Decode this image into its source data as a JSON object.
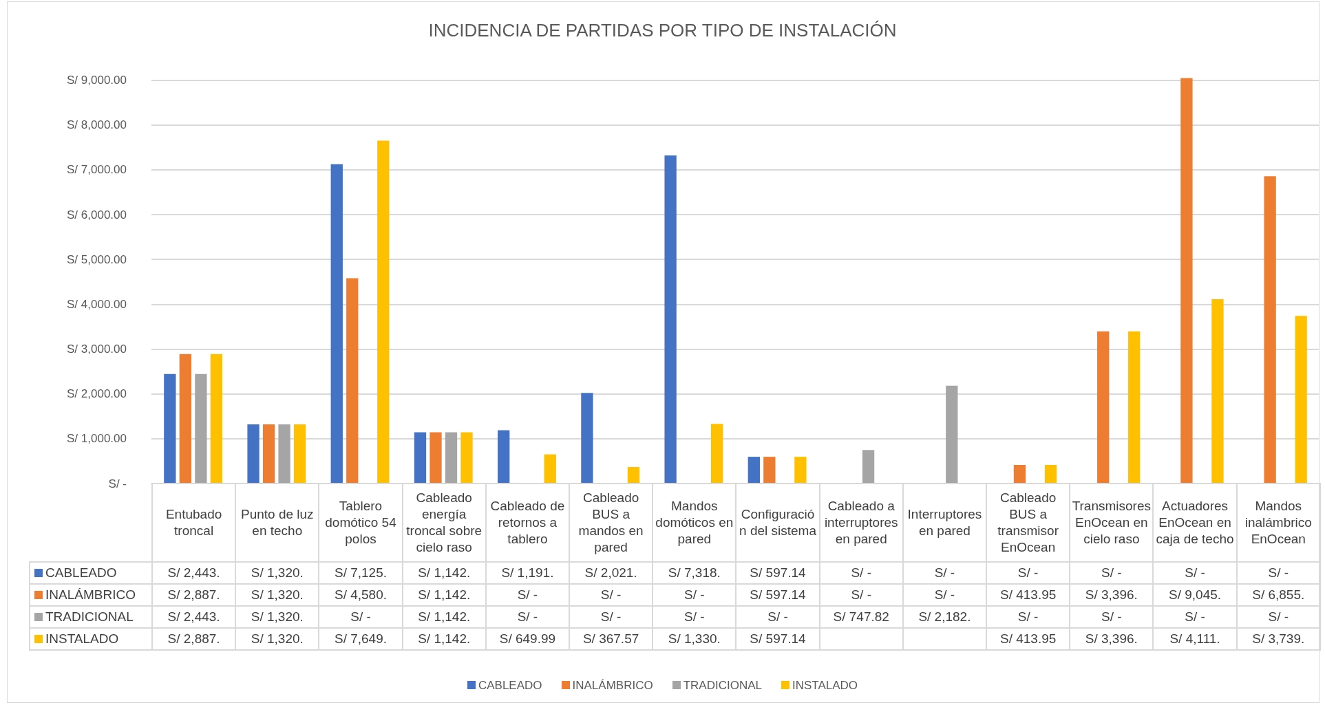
{
  "chart_data": {
    "type": "bar",
    "title": "INCIDENCIA DE PARTIDAS POR TIPO DE INSTALACIÓN",
    "categories": [
      "Entubado troncal",
      "Punto de luz en techo",
      "Tablero domótico 54 polos",
      "Cableado energía troncal sobre cielo raso",
      "Cableado de retornos a tablero",
      "Cableado BUS a mandos en pared",
      "Mandos domóticos en pared",
      "Configuración del sistema",
      "Cableado a interruptores en pared",
      "Interruptores en pared",
      "Cableado BUS a transmisor EnOcean",
      "Transmisores EnOcean en cielo raso",
      "Actuadores EnOcean en caja de techo",
      "Mandos inalámbrico EnOcean"
    ],
    "series": [
      {
        "name": "CABLEADO",
        "color": "#4472c4",
        "values": [
          2443,
          1320,
          7125,
          1142,
          1191,
          2021,
          7318,
          597.14,
          null,
          null,
          null,
          null,
          null,
          null
        ],
        "value_labels": [
          "S/ 2,443.",
          "S/ 1,320.",
          "S/ 7,125.",
          "S/ 1,142.",
          "S/ 1,191.",
          "S/ 2,021.",
          "S/ 7,318.",
          "S/ 597.14",
          "S/ -",
          "S/ -",
          "S/ -",
          "S/ -",
          "S/ -",
          "S/ -"
        ]
      },
      {
        "name": "INALÁMBRICO",
        "color": "#ed7d31",
        "values": [
          2887,
          1320,
          4580,
          1142,
          null,
          null,
          null,
          597.14,
          null,
          null,
          413.95,
          3396,
          9045,
          6855
        ],
        "value_labels": [
          "S/ 2,887.",
          "S/ 1,320.",
          "S/ 4,580.",
          "S/ 1,142.",
          "S/ -",
          "S/ -",
          "S/ -",
          "S/ 597.14",
          "S/ -",
          "S/ -",
          "S/ 413.95",
          "S/ 3,396.",
          "S/ 9,045.",
          "S/ 6,855."
        ]
      },
      {
        "name": "TRADICIONAL",
        "color": "#a5a5a5",
        "values": [
          2443,
          1320,
          null,
          1142,
          null,
          null,
          null,
          null,
          747.82,
          2182,
          null,
          null,
          null,
          null
        ],
        "value_labels": [
          "S/ 2,443.",
          "S/ 1,320.",
          "S/ -",
          "S/ 1,142.",
          "S/ -",
          "S/ -",
          "S/ -",
          "S/ -",
          "S/ 747.82",
          "S/ 2,182.",
          "S/ -",
          "S/ -",
          "S/ -",
          "S/ -"
        ]
      },
      {
        "name": "INSTALADO",
        "color": "#ffc000",
        "values": [
          2887,
          1320,
          7649,
          1142,
          649.99,
          367.57,
          1330,
          597.14,
          null,
          null,
          413.95,
          3396,
          4111,
          3739
        ],
        "value_labels": [
          "S/ 2,887.",
          "S/ 1,320.",
          "S/ 7,649.",
          "S/ 1,142.",
          "S/ 649.99",
          "S/ 367.57",
          "S/ 1,330.",
          "S/ 597.14",
          null,
          null,
          "S/ 413.95",
          "S/ 3,396.",
          "S/ 4,111.",
          "S/ 3,739."
        ]
      }
    ],
    "ylim": [
      0,
      9100
    ],
    "yticks": [
      {
        "value": 0,
        "label": "S/ -"
      },
      {
        "value": 1000,
        "label": "S/ 1,000.00"
      },
      {
        "value": 2000,
        "label": "S/ 2,000.00"
      },
      {
        "value": 3000,
        "label": "S/ 3,000.00"
      },
      {
        "value": 4000,
        "label": "S/ 4,000.00"
      },
      {
        "value": 5000,
        "label": "S/ 5,000.00"
      },
      {
        "value": 6000,
        "label": "S/ 6,000.00"
      },
      {
        "value": 7000,
        "label": "S/ 7,000.00"
      },
      {
        "value": 8000,
        "label": "S/ 8,000.00"
      },
      {
        "value": 9000,
        "label": "S/ 9,000.00"
      }
    ],
    "grid": "y",
    "legend": "bottom"
  }
}
